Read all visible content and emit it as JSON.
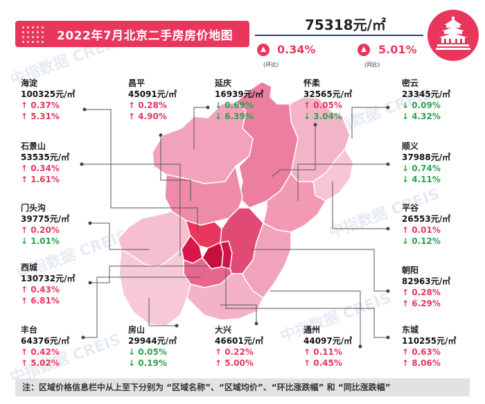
{
  "title": "2022年7月北京二手房房价地图",
  "city_average": {
    "price": "75318元/㎡",
    "mom_value": "0.34%",
    "mom_label": "(环比)",
    "yoy_value": "5.01%",
    "yoy_label": "(同比)"
  },
  "watermark": "中指数据 CREIS",
  "districts": [
    {
      "id": "haidian",
      "name": "海淀",
      "price": "100325元/㎡",
      "mom": "↑ 0.37%",
      "yoy": "↑ 5.31%",
      "mom_dir": "up",
      "yoy_dir": "up"
    },
    {
      "id": "changping",
      "name": "昌平",
      "price": "45091元/㎡",
      "mom": "↑ 0.28%",
      "yoy": "↑ 4.90%",
      "mom_dir": "up",
      "yoy_dir": "up"
    },
    {
      "id": "yanqing",
      "name": "延庆",
      "price": "16939元/㎡",
      "mom": "↓ 0.69%",
      "yoy": "↓ 6.39%",
      "mom_dir": "down",
      "yoy_dir": "down"
    },
    {
      "id": "huairou",
      "name": "怀柔",
      "price": "32565元/㎡",
      "mom": "↑ 0.05%",
      "yoy": "↓ 3.04%",
      "mom_dir": "up",
      "yoy_dir": "down"
    },
    {
      "id": "miyun",
      "name": "密云",
      "price": "23345元/㎡",
      "mom": "↓ 0.09%",
      "yoy": "↓ 4.32%",
      "mom_dir": "down",
      "yoy_dir": "down"
    },
    {
      "id": "shijingshan",
      "name": "石景山",
      "price": "53535元/㎡",
      "mom": "↑ 0.34%",
      "yoy": "↑ 1.61%",
      "mom_dir": "up",
      "yoy_dir": "up"
    },
    {
      "id": "shunyi",
      "name": "顺义",
      "price": "37988元/㎡",
      "mom": "↓ 0.74%",
      "yoy": "↓ 4.11%",
      "mom_dir": "down",
      "yoy_dir": "down"
    },
    {
      "id": "mentougou",
      "name": "门头沟",
      "price": "39775元/㎡",
      "mom": "↑ 0.20%",
      "yoy": "↓ 1.01%",
      "mom_dir": "up",
      "yoy_dir": "down"
    },
    {
      "id": "pinggu",
      "name": "平谷",
      "price": "26553元/㎡",
      "mom": "↑ 0.01%",
      "yoy": "↓ 0.12%",
      "mom_dir": "up",
      "yoy_dir": "down"
    },
    {
      "id": "xicheng",
      "name": "西城",
      "price": "130732元/㎡",
      "mom": "↑ 0.43%",
      "yoy": "↑ 6.81%",
      "mom_dir": "up",
      "yoy_dir": "up"
    },
    {
      "id": "chaoyang",
      "name": "朝阳",
      "price": "82963元/㎡",
      "mom": "↑ 0.28%",
      "yoy": "↑ 6.29%",
      "mom_dir": "up",
      "yoy_dir": "up"
    },
    {
      "id": "fengtai",
      "name": "丰台",
      "price": "64376元/㎡",
      "mom": "↑ 0.42%",
      "yoy": "↑ 5.02%",
      "mom_dir": "up",
      "yoy_dir": "up"
    },
    {
      "id": "fangshan",
      "name": "房山",
      "price": "29944元/㎡",
      "mom": "↓ 0.05%",
      "yoy": "↓ 0.19%",
      "mom_dir": "down",
      "yoy_dir": "down"
    },
    {
      "id": "daxing",
      "name": "大兴",
      "price": "46601元/㎡",
      "mom": "↑ 0.22%",
      "yoy": "↑ 5.00%",
      "mom_dir": "up",
      "yoy_dir": "up"
    },
    {
      "id": "tongzhou",
      "name": "通州",
      "price": "44097元/㎡",
      "mom": "↑ 0.11%",
      "yoy": "↑ 0.45%",
      "mom_dir": "up",
      "yoy_dir": "up"
    },
    {
      "id": "dongcheng",
      "name": "东城",
      "price": "110255元/㎡",
      "mom": "↑ 0.63%",
      "yoy": "↑ 8.06%",
      "mom_dir": "up",
      "yoy_dir": "up"
    }
  ],
  "footer_note": "注：区域价格信息栏中从上至下分别为 “区域名称”、“区域均价”、“环比涨跌幅” 和 “同比涨跌幅”",
  "colors": {
    "accent": "#e8365d",
    "navy": "#2a3b8f",
    "up": "#e8365d",
    "down": "#2ea14d"
  }
}
